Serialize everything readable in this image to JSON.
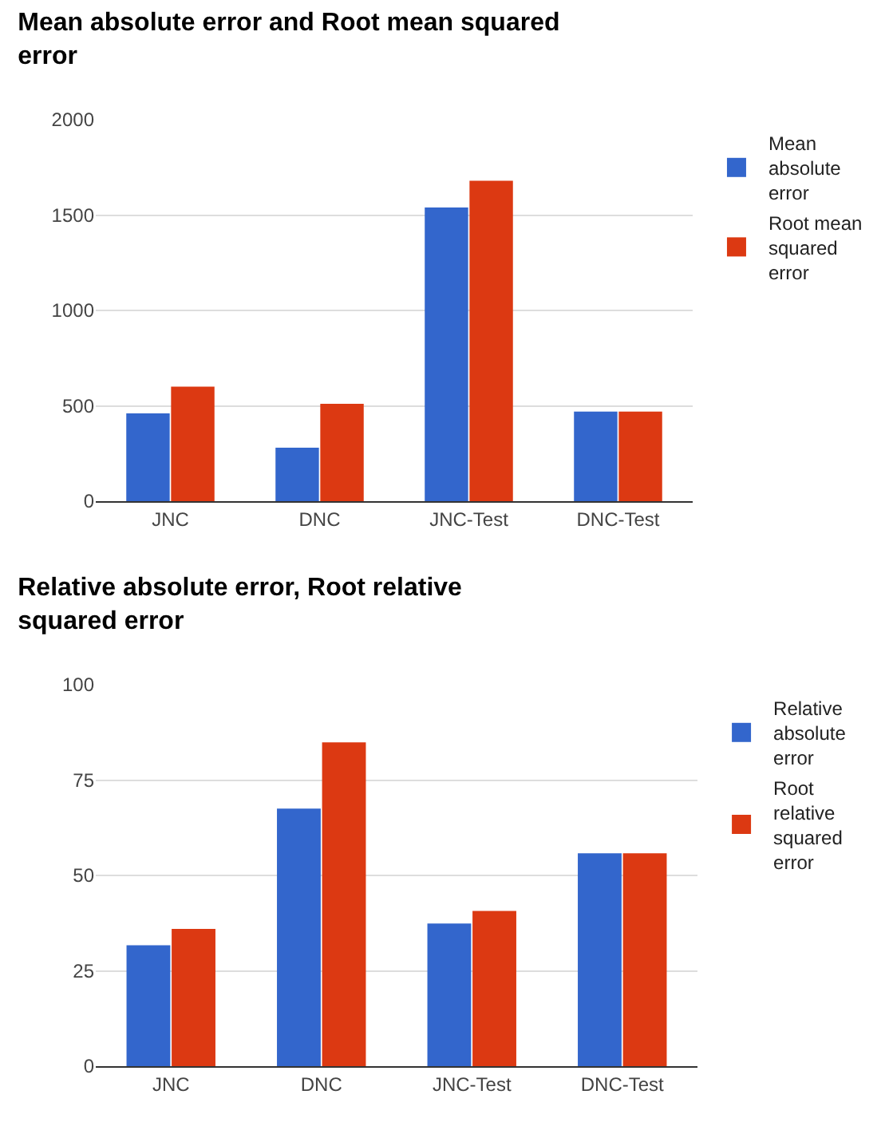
{
  "chart_data": [
    {
      "type": "bar",
      "title": "Mean absolute error and Root mean squared error",
      "categories": [
        "JNC",
        "DNC",
        "JNC-Test",
        "DNC-Test"
      ],
      "series": [
        {
          "name": "Mean absolute error",
          "color": "#3366cc",
          "values": [
            460,
            280,
            1540,
            470
          ]
        },
        {
          "name": "Root mean squared error",
          "color": "#dc3912",
          "values": [
            600,
            510,
            1680,
            470
          ]
        }
      ],
      "ylim": [
        0,
        2000
      ],
      "yticks": [
        0,
        500,
        1000,
        1500,
        2000
      ],
      "grid": "y",
      "legend": "top right"
    },
    {
      "type": "bar",
      "title": "Relative absolute error, Root relative squared error",
      "categories": [
        "JNC",
        "DNC",
        "JNC-Test",
        "DNC-Test"
      ],
      "series": [
        {
          "name": "Relative absolute error",
          "color": "#3366cc",
          "values": [
            31.7,
            67.5,
            37.4,
            55.8
          ]
        },
        {
          "name": "Root relative squared error",
          "color": "#dc3912",
          "values": [
            36.0,
            84.9,
            40.7,
            55.8
          ]
        }
      ],
      "ylim": [
        0,
        100
      ],
      "yticks": [
        0,
        25,
        50,
        75,
        100
      ],
      "grid": "y",
      "legend": "top right"
    }
  ]
}
